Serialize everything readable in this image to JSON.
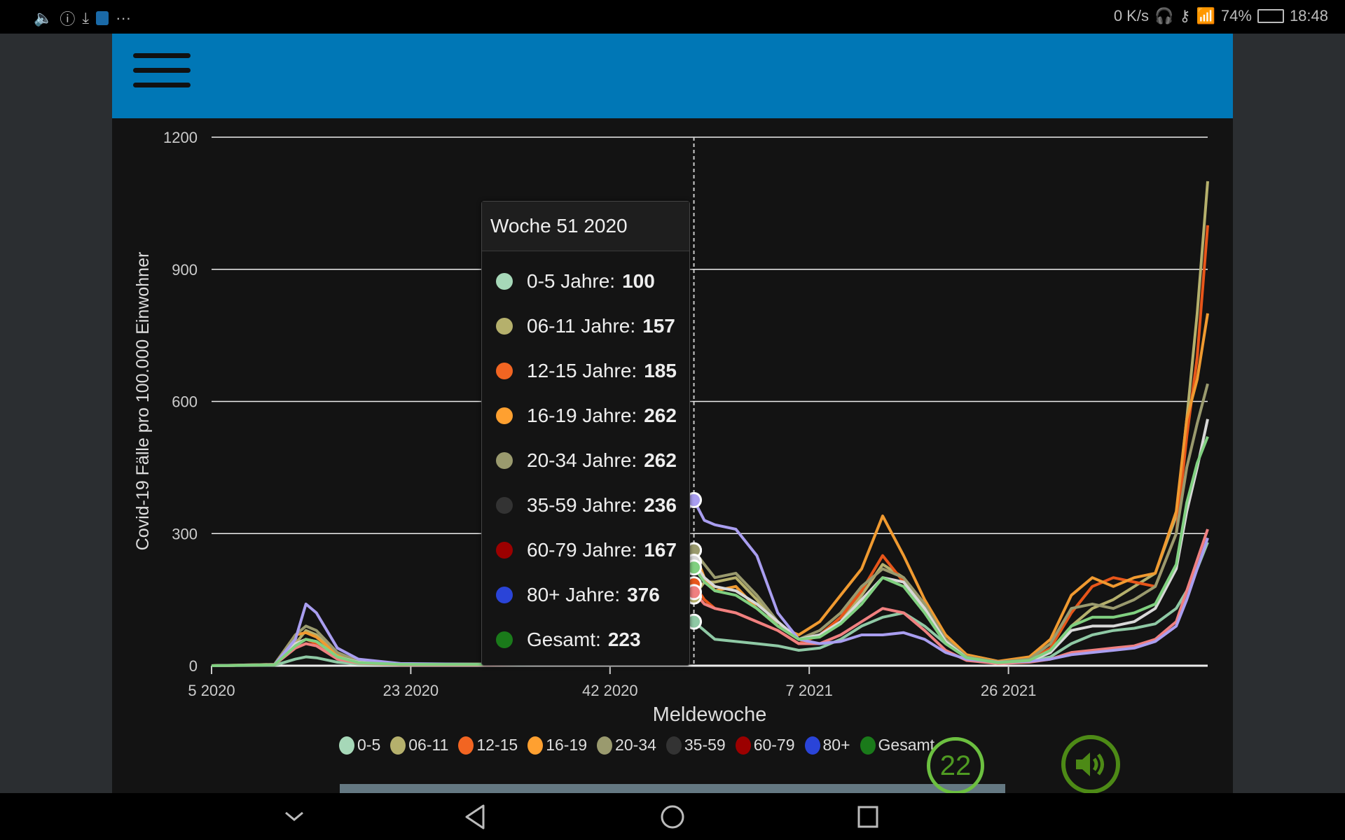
{
  "statusbar": {
    "net_speed": "0 K/s",
    "battery": "74%",
    "time": "18:48"
  },
  "tooltip": {
    "title": "Woche 51 2020",
    "rows": [
      {
        "label": "0-5 Jahre:",
        "value": "100",
        "color": "#a6d8b8"
      },
      {
        "label": "06-11 Jahre:",
        "value": "157",
        "color": "#b5b06c"
      },
      {
        "label": "12-15 Jahre:",
        "value": "185",
        "color": "#f26522"
      },
      {
        "label": "16-19 Jahre:",
        "value": "262",
        "color": "#ffa030"
      },
      {
        "label": "20-34 Jahre:",
        "value": "262",
        "color": "#9a9a6e"
      },
      {
        "label": "35-59 Jahre:",
        "value": "236",
        "color": "#333333"
      },
      {
        "label": "60-79 Jahre:",
        "value": "167",
        "color": "#9b0000"
      },
      {
        "label": "80+ Jahre:",
        "value": "376",
        "color": "#2a44d8"
      },
      {
        "label": "Gesamt:",
        "value": "223",
        "color": "#1a7a1a"
      }
    ]
  },
  "badge": {
    "count": "22"
  },
  "chart_data": {
    "type": "line",
    "xlabel": "Meldewoche",
    "ylabel": "Covid-19 Fälle pro 100.000 Einwohner",
    "ylim": [
      0,
      1200
    ],
    "yticks": [
      0,
      300,
      600,
      900,
      1200
    ],
    "xlim": [
      0,
      95
    ],
    "xticks": [
      {
        "index": 0,
        "label": "5 2020"
      },
      {
        "index": 19,
        "label": "23 2020"
      },
      {
        "index": 38,
        "label": "42 2020"
      },
      {
        "index": 57,
        "label": "7 2021"
      },
      {
        "index": 76,
        "label": "26 2021"
      }
    ],
    "hover_index": 46,
    "grid": true,
    "legend_position": "bottom",
    "x_index": [
      0,
      6,
      8,
      9,
      10,
      12,
      14,
      18,
      26,
      34,
      38,
      42,
      44,
      46,
      47,
      48,
      50,
      52,
      54,
      56,
      58,
      60,
      62,
      64,
      66,
      68,
      70,
      72,
      75,
      78,
      80,
      82,
      84,
      86,
      88,
      90,
      92,
      93,
      94,
      95
    ],
    "series": [
      {
        "name": "0-5",
        "color": "#a6d8b8",
        "line_color": "#8fc9a5",
        "values": [
          0,
          1,
          15,
          20,
          18,
          8,
          4,
          2,
          2,
          4,
          10,
          40,
          70,
          100,
          80,
          60,
          55,
          50,
          45,
          35,
          40,
          60,
          90,
          110,
          120,
          90,
          50,
          20,
          8,
          10,
          20,
          50,
          70,
          80,
          85,
          95,
          130,
          170,
          220,
          280
        ]
      },
      {
        "name": "06-11",
        "color": "#b5b06c",
        "line_color": "#b5b06c",
        "values": [
          0,
          2,
          50,
          80,
          70,
          25,
          8,
          3,
          3,
          6,
          20,
          90,
          140,
          157,
          190,
          190,
          200,
          150,
          90,
          60,
          70,
          100,
          160,
          230,
          200,
          140,
          70,
          25,
          10,
          12,
          30,
          90,
          130,
          150,
          180,
          210,
          340,
          560,
          800,
          1100
        ]
      },
      {
        "name": "12-15",
        "color": "#f26522",
        "line_color": "#e8561a",
        "values": [
          0,
          2,
          50,
          60,
          50,
          20,
          8,
          3,
          3,
          8,
          25,
          100,
          160,
          185,
          150,
          130,
          120,
          100,
          80,
          50,
          70,
          110,
          170,
          250,
          190,
          120,
          55,
          20,
          8,
          12,
          40,
          120,
          180,
          200,
          190,
          180,
          300,
          520,
          700,
          1000
        ]
      },
      {
        "name": "16-19",
        "color": "#ffa030",
        "line_color": "#f09a30",
        "values": [
          0,
          3,
          70,
          75,
          65,
          25,
          10,
          4,
          4,
          10,
          40,
          150,
          230,
          262,
          200,
          170,
          180,
          130,
          90,
          70,
          100,
          160,
          220,
          340,
          250,
          150,
          70,
          25,
          10,
          20,
          60,
          160,
          200,
          180,
          200,
          210,
          350,
          560,
          650,
          800
        ]
      },
      {
        "name": "20-34",
        "color": "#9a9a6e",
        "line_color": "#9a9a6e",
        "values": [
          0,
          3,
          70,
          90,
          80,
          30,
          10,
          4,
          4,
          10,
          40,
          150,
          230,
          262,
          230,
          200,
          210,
          160,
          100,
          60,
          80,
          120,
          180,
          220,
          200,
          140,
          60,
          20,
          8,
          15,
          50,
          130,
          140,
          130,
          150,
          180,
          300,
          450,
          550,
          640
        ]
      },
      {
        "name": "35-59",
        "color": "#333333",
        "line_color": "#d8d8d8",
        "values": [
          0,
          2,
          50,
          60,
          55,
          20,
          8,
          3,
          3,
          8,
          35,
          130,
          200,
          236,
          200,
          180,
          170,
          140,
          100,
          60,
          70,
          100,
          150,
          200,
          190,
          130,
          55,
          18,
          6,
          10,
          30,
          80,
          90,
          90,
          100,
          130,
          220,
          350,
          450,
          560
        ]
      },
      {
        "name": "60-79",
        "color": "#9b0000",
        "line_color": "#f08080",
        "values": [
          0,
          2,
          40,
          50,
          45,
          15,
          6,
          2,
          2,
          5,
          25,
          100,
          150,
          167,
          140,
          130,
          120,
          100,
          80,
          50,
          50,
          70,
          100,
          130,
          120,
          80,
          35,
          12,
          5,
          8,
          15,
          30,
          35,
          40,
          45,
          60,
          100,
          170,
          240,
          310
        ]
      },
      {
        "name": "80+",
        "color": "#2a44d8",
        "line_color": "#a99ef0",
        "values": [
          0,
          2,
          60,
          140,
          120,
          40,
          15,
          5,
          3,
          5,
          30,
          150,
          300,
          376,
          330,
          320,
          310,
          250,
          120,
          60,
          50,
          55,
          70,
          70,
          75,
          60,
          30,
          15,
          8,
          10,
          15,
          25,
          30,
          35,
          40,
          55,
          90,
          150,
          220,
          290
        ]
      },
      {
        "name": "Gesamt",
        "color": "#1a7a1a",
        "line_color": "#80d080",
        "values": [
          0,
          2,
          45,
          60,
          55,
          20,
          7,
          3,
          3,
          8,
          30,
          120,
          190,
          223,
          190,
          170,
          160,
          130,
          90,
          60,
          65,
          95,
          140,
          200,
          180,
          120,
          50,
          18,
          7,
          12,
          35,
          90,
          110,
          110,
          120,
          140,
          230,
          370,
          460,
          520
        ]
      }
    ]
  }
}
